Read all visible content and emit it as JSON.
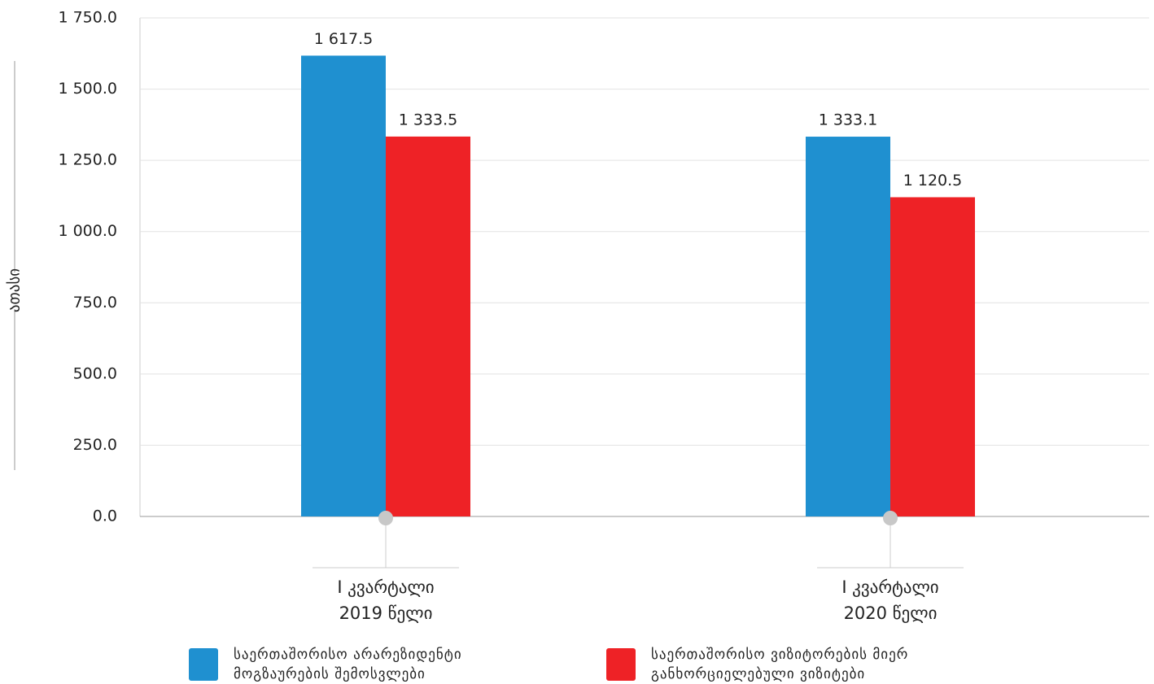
{
  "chart_data": {
    "type": "bar",
    "y_label": "ათასი",
    "categories": [
      "I კვარტალი\n2019 წელი",
      "I კვარტალი\n2020 წელი"
    ],
    "series": [
      {
        "name": "საერთაშორისო არარეზიდენტი მოგზაურების შემოსვლები",
        "color": "#1f90d0",
        "values": [
          1617.5,
          1333.1
        ],
        "value_labels": [
          "1 617.5",
          "1 333.1"
        ]
      },
      {
        "name": "საერთაშორისო ვიზიტორების მიერ განხორციელებული ვიზიტები",
        "color": "#ee2226",
        "values": [
          1333.5,
          1120.5
        ],
        "value_labels": [
          "1 333.5",
          "1 120.5"
        ]
      }
    ],
    "ylim": [
      0,
      1750
    ],
    "yticks": [
      {
        "value": 0,
        "label": "0.0"
      },
      {
        "value": 250,
        "label": "250.0"
      },
      {
        "value": 500,
        "label": "500.0"
      },
      {
        "value": 750,
        "label": "750.0"
      },
      {
        "value": 1000,
        "label": "1 000.0"
      },
      {
        "value": 1250,
        "label": "1 250.0"
      },
      {
        "value": 1500,
        "label": "1 500.0"
      },
      {
        "value": 1750,
        "label": "1 750.0"
      }
    ],
    "grid": true
  }
}
